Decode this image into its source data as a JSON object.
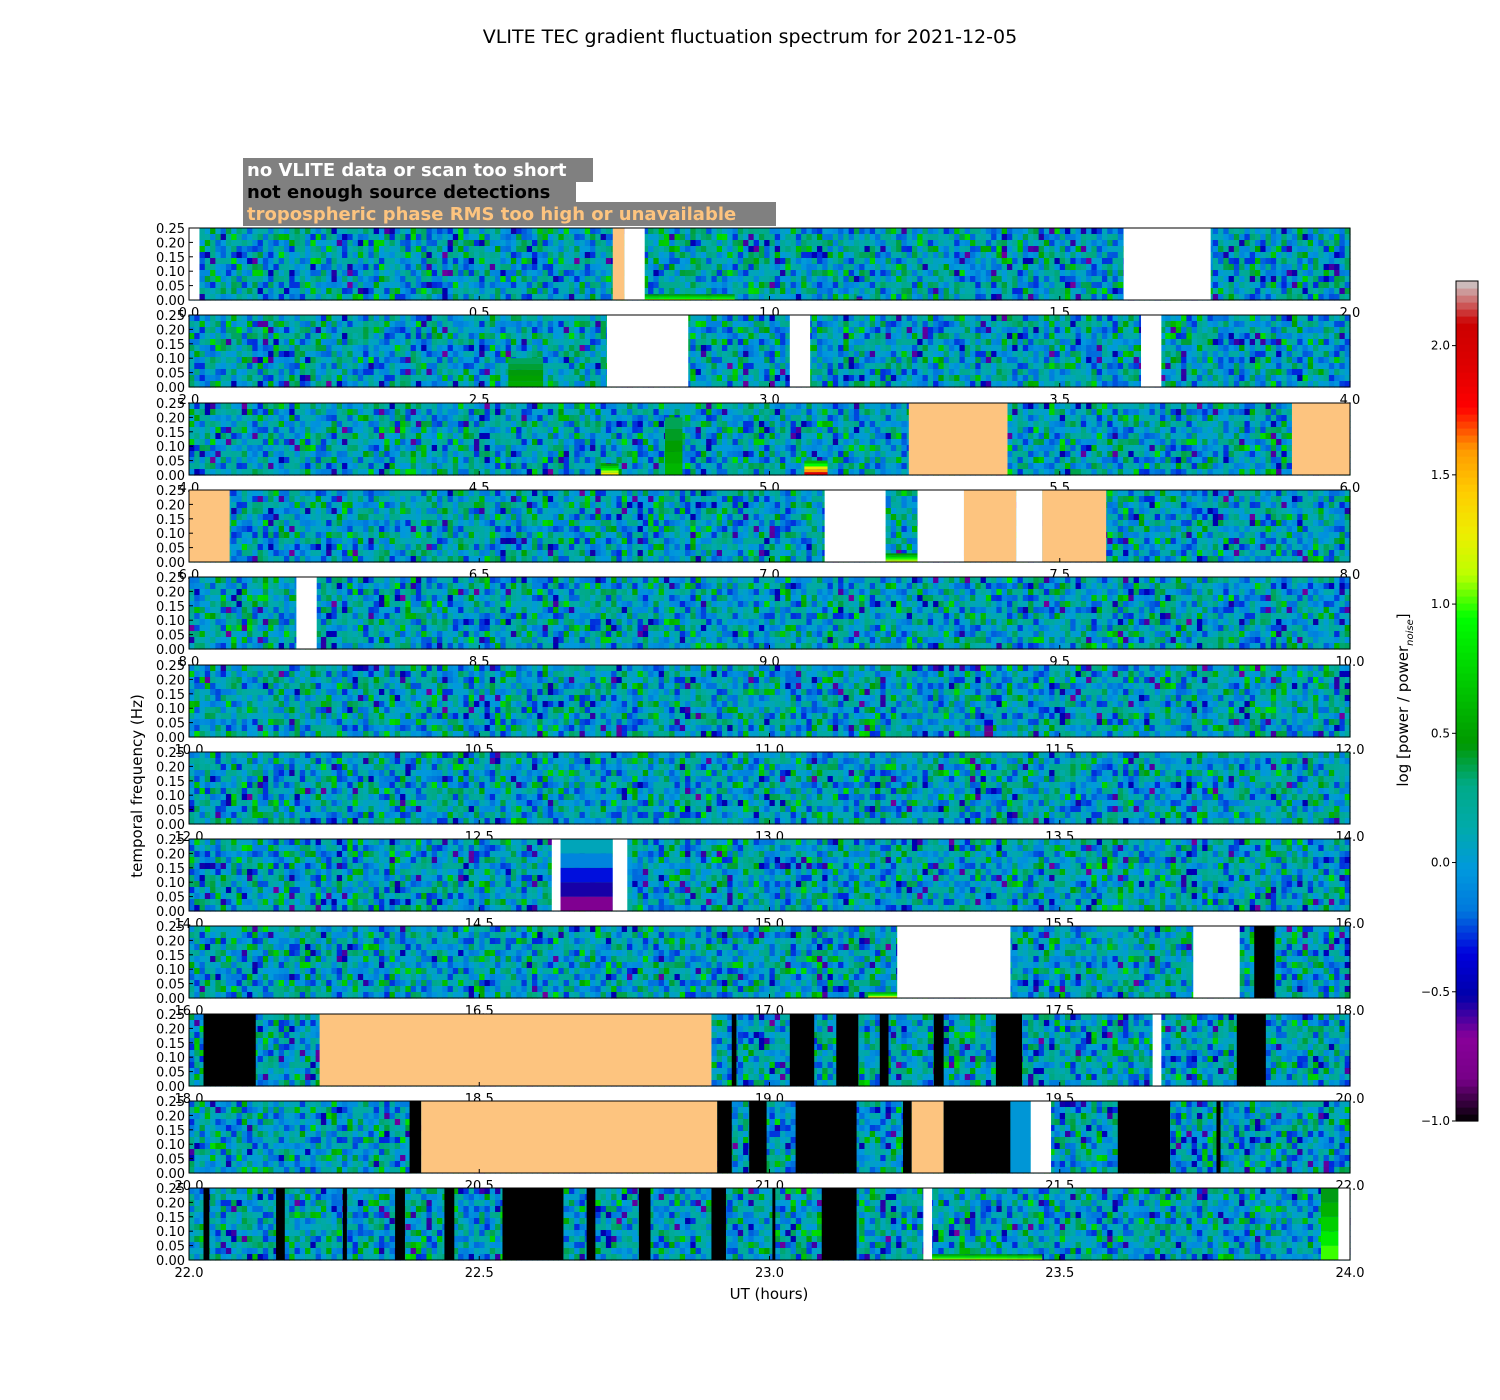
{
  "chart_data": {
    "type": "heatmap",
    "title": "VLITE TEC gradient fluctuation spectrum for 2021-12-05",
    "xlabel": "UT (hours)",
    "ylabel": "temporal frequency (Hz)",
    "colorbar_label": "log [power / power",
    "colorbar_label_subscript": "noise",
    "colorbar_label_close": "]",
    "colorbar_range": [
      -1.0,
      2.25
    ],
    "colorbar_ticks": [
      "−1.0",
      "−0.5",
      "0.0",
      "0.5",
      "1.0",
      "1.5",
      "2.0"
    ],
    "colorbar_tick_values": [
      -1.0,
      -0.5,
      0.0,
      0.5,
      1.0,
      1.5,
      2.0
    ],
    "colormap": "nipy_spectral",
    "ylim": [
      0,
      0.25
    ],
    "y_ticks": [
      "0.00",
      "0.05",
      "0.10",
      "0.15",
      "0.20",
      "0.25"
    ],
    "legend": [
      {
        "text": "no VLITE data or scan too short",
        "color": "#ffffff",
        "status": "white"
      },
      {
        "text": "not enough source detections",
        "color": "#000000",
        "status": "black"
      },
      {
        "text": "tropospheric phase RMS too high or unavailable",
        "color": "#fdc47f",
        "status": "orange"
      }
    ],
    "legend_background": "#808080",
    "panels": [
      {
        "xlim": [
          0.0,
          2.0
        ],
        "x_ticks": [
          "0.0",
          "0.5",
          "1.0",
          "1.5",
          "2.0"
        ],
        "regions": [
          {
            "start": 0.0,
            "end": 0.018,
            "status": "white"
          },
          {
            "start": 0.73,
            "end": 0.75,
            "status": "orange"
          },
          {
            "start": 0.75,
            "end": 0.785,
            "status": "white"
          },
          {
            "start": 1.61,
            "end": 1.76,
            "status": "white"
          }
        ],
        "hot": [
          {
            "start": 0.785,
            "end": 0.94,
            "fmax": 0.02,
            "level": 1.1
          },
          {
            "start": 1.15,
            "end": 1.16,
            "fmax": 0.02,
            "level": -0.9
          }
        ]
      },
      {
        "xlim": [
          2.0,
          4.0
        ],
        "x_ticks": [
          "2.0",
          "2.5",
          "3.0",
          "3.5",
          "4.0"
        ],
        "regions": [
          {
            "start": 2.72,
            "end": 2.86,
            "status": "white"
          },
          {
            "start": 3.035,
            "end": 3.07,
            "status": "white"
          },
          {
            "start": 3.64,
            "end": 3.675,
            "status": "white"
          }
        ],
        "hot": [
          {
            "start": 2.55,
            "end": 2.61,
            "fmax": 0.1,
            "level": 0.55
          }
        ]
      },
      {
        "xlim": [
          4.0,
          6.0
        ],
        "x_ticks": [
          "4.0",
          "4.5",
          "5.0",
          "5.5",
          "6.0"
        ],
        "regions": [
          {
            "start": 5.24,
            "end": 5.41,
            "status": "orange"
          },
          {
            "start": 5.9,
            "end": 6.0,
            "status": "orange"
          }
        ],
        "hot": [
          {
            "start": 4.71,
            "end": 4.74,
            "fmax": 0.04,
            "level": 1.3
          },
          {
            "start": 4.82,
            "end": 4.85,
            "fmax": 0.2,
            "level": 0.6
          },
          {
            "start": 5.06,
            "end": 5.1,
            "fmax": 0.05,
            "level": 1.9
          }
        ]
      },
      {
        "xlim": [
          6.0,
          8.0
        ],
        "x_ticks": [
          "6.0",
          "6.5",
          "7.0",
          "7.5",
          "8.0"
        ],
        "regions": [
          {
            "start": 6.0,
            "end": 6.07,
            "status": "orange"
          },
          {
            "start": 7.095,
            "end": 7.2,
            "status": "white"
          },
          {
            "start": 7.255,
            "end": 7.335,
            "status": "white"
          },
          {
            "start": 7.335,
            "end": 7.425,
            "status": "orange"
          },
          {
            "start": 7.425,
            "end": 7.47,
            "status": "white"
          },
          {
            "start": 7.47,
            "end": 7.58,
            "status": "orange"
          }
        ],
        "hot": [
          {
            "start": 7.2,
            "end": 7.255,
            "fmax": 0.03,
            "level": 1.2
          }
        ]
      },
      {
        "xlim": [
          8.0,
          10.0
        ],
        "x_ticks": [
          "8.0",
          "8.5",
          "9.0",
          "9.5",
          "10.0"
        ],
        "regions": [
          {
            "start": 8.185,
            "end": 8.22,
            "status": "white"
          }
        ],
        "hot": []
      },
      {
        "xlim": [
          10.0,
          12.0
        ],
        "x_ticks": [
          "10.0",
          "10.5",
          "11.0",
          "11.5",
          "12.0"
        ],
        "regions": [],
        "hot": [
          {
            "start": 11.37,
            "end": 11.385,
            "fmax": 0.1,
            "level": -0.85
          }
        ]
      },
      {
        "xlim": [
          12.0,
          14.0
        ],
        "x_ticks": [
          "12.0",
          "12.5",
          "13.0",
          "13.5",
          "14.0"
        ],
        "regions": [],
        "hot": []
      },
      {
        "xlim": [
          14.0,
          16.0
        ],
        "x_ticks": [
          "14.0",
          "14.5",
          "15.0",
          "15.5",
          "16.0"
        ],
        "regions": [
          {
            "start": 14.625,
            "end": 14.64,
            "status": "white"
          },
          {
            "start": 14.73,
            "end": 14.755,
            "status": "white"
          }
        ],
        "hot": [
          {
            "start": 14.64,
            "end": 14.73,
            "fmax": 0.25,
            "level": -0.75
          }
        ]
      },
      {
        "xlim": [
          16.0,
          18.0
        ],
        "x_ticks": [
          "16.0",
          "16.5",
          "17.0",
          "17.5",
          "18.0"
        ],
        "regions": [
          {
            "start": 17.22,
            "end": 17.415,
            "status": "white"
          },
          {
            "start": 17.73,
            "end": 17.81,
            "status": "white"
          },
          {
            "start": 17.835,
            "end": 17.87,
            "status": "black"
          }
        ],
        "hot": [
          {
            "start": 17.17,
            "end": 17.22,
            "fmax": 0.02,
            "level": 1.4
          }
        ]
      },
      {
        "xlim": [
          18.0,
          20.0
        ],
        "x_ticks": [
          "18.0",
          "18.5",
          "19.0",
          "19.5",
          "20.0"
        ],
        "regions": [
          {
            "start": 18.025,
            "end": 18.115,
            "status": "black"
          },
          {
            "start": 18.225,
            "end": 18.9,
            "status": "orange"
          },
          {
            "start": 18.935,
            "end": 18.943,
            "status": "black"
          },
          {
            "start": 19.035,
            "end": 19.077,
            "status": "black"
          },
          {
            "start": 19.115,
            "end": 19.153,
            "status": "black"
          },
          {
            "start": 19.19,
            "end": 19.205,
            "status": "black"
          },
          {
            "start": 19.283,
            "end": 19.3,
            "status": "black"
          },
          {
            "start": 19.39,
            "end": 19.435,
            "status": "black"
          },
          {
            "start": 19.66,
            "end": 19.675,
            "status": "white"
          },
          {
            "start": 19.805,
            "end": 19.855,
            "status": "black"
          }
        ],
        "hot": []
      },
      {
        "xlim": [
          20.0,
          22.0
        ],
        "x_ticks": [
          "20.0",
          "20.5",
          "21.0",
          "21.5",
          "22.0"
        ],
        "regions": [
          {
            "start": 20.38,
            "end": 20.4,
            "status": "black"
          },
          {
            "start": 20.4,
            "end": 20.91,
            "status": "orange"
          },
          {
            "start": 20.91,
            "end": 20.935,
            "status": "black"
          },
          {
            "start": 20.965,
            "end": 20.995,
            "status": "black"
          },
          {
            "start": 21.045,
            "end": 21.15,
            "status": "black"
          },
          {
            "start": 21.23,
            "end": 21.245,
            "status": "black"
          },
          {
            "start": 21.245,
            "end": 21.3,
            "status": "orange"
          },
          {
            "start": 21.3,
            "end": 21.415,
            "status": "black"
          },
          {
            "start": 21.415,
            "end": 21.45,
            "status": "blue"
          },
          {
            "start": 21.45,
            "end": 21.485,
            "status": "white"
          },
          {
            "start": 21.6,
            "end": 21.69,
            "status": "black"
          },
          {
            "start": 21.77,
            "end": 21.777,
            "status": "black"
          }
        ],
        "hot": []
      },
      {
        "xlim": [
          22.0,
          24.0
        ],
        "x_ticks": [
          "22.0",
          "22.5",
          "23.0",
          "23.5",
          "24.0"
        ],
        "regions": [
          {
            "start": 22.025,
            "end": 22.035,
            "status": "black"
          },
          {
            "start": 22.15,
            "end": 22.165,
            "status": "black"
          },
          {
            "start": 22.265,
            "end": 22.272,
            "status": "black"
          },
          {
            "start": 22.355,
            "end": 22.372,
            "status": "black"
          },
          {
            "start": 22.44,
            "end": 22.457,
            "status": "black"
          },
          {
            "start": 22.54,
            "end": 22.645,
            "status": "black"
          },
          {
            "start": 22.685,
            "end": 22.7,
            "status": "black"
          },
          {
            "start": 22.775,
            "end": 22.795,
            "status": "black"
          },
          {
            "start": 22.9,
            "end": 22.925,
            "status": "black"
          },
          {
            "start": 23.005,
            "end": 23.01,
            "status": "black"
          },
          {
            "start": 23.09,
            "end": 23.15,
            "status": "black"
          },
          {
            "start": 23.265,
            "end": 23.28,
            "status": "white"
          },
          {
            "start": 23.98,
            "end": 24.0,
            "status": "white"
          }
        ],
        "hot": [
          {
            "start": 23.28,
            "end": 23.47,
            "fmax": 0.02,
            "level": 1.2
          },
          {
            "start": 23.95,
            "end": 23.98,
            "fmax": 0.25,
            "level": 1.0
          }
        ]
      }
    ]
  }
}
